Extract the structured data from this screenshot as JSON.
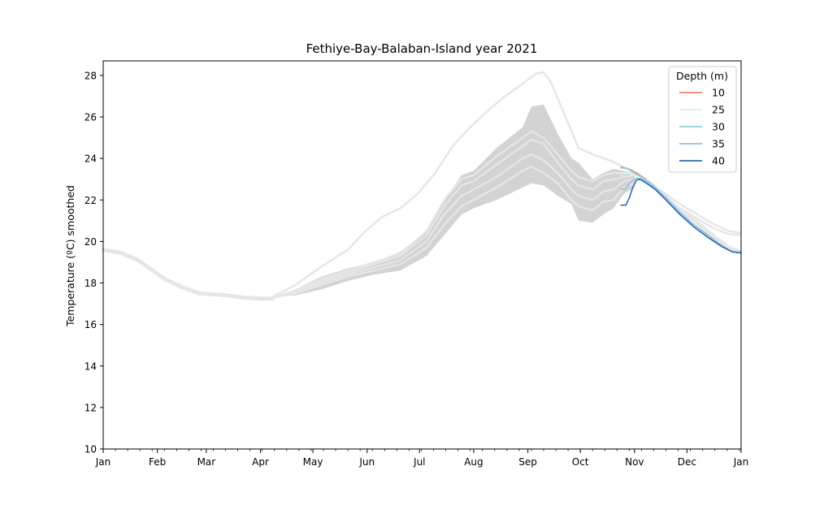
{
  "chart_data": {
    "type": "line",
    "title": "Fethiye-Bay-Balaban-Island year 2021",
    "xlabel": "",
    "ylabel": "Temperature (ºC) smoothed",
    "x_range_days": [
      0,
      365
    ],
    "ylim": [
      10,
      28.7
    ],
    "x_ticks": [
      {
        "label": "Jan",
        "day": 0
      },
      {
        "label": "Feb",
        "day": 31
      },
      {
        "label": "Mar",
        "day": 59
      },
      {
        "label": "Apr",
        "day": 90
      },
      {
        "label": "May",
        "day": 120
      },
      {
        "label": "Jun",
        "day": 151
      },
      {
        "label": "Jul",
        "day": 181
      },
      {
        "label": "Aug",
        "day": 212
      },
      {
        "label": "Sep",
        "day": 243
      },
      {
        "label": "Oct",
        "day": 273
      },
      {
        "label": "Nov",
        "day": 304
      },
      {
        "label": "Dec",
        "day": 334
      },
      {
        "label": "Jan",
        "day": 365
      }
    ],
    "y_ticks": [
      10,
      12,
      14,
      16,
      18,
      20,
      22,
      24,
      26,
      28
    ],
    "grid": false,
    "legend": {
      "title": "Depth (m)",
      "placement": "top-right"
    },
    "climatology": {
      "color": "#d3d3d3",
      "line_color": "#e6e6e6",
      "band_upper": [
        [
          0,
          19.6
        ],
        [
          10,
          19.4
        ],
        [
          25,
          18.8
        ],
        [
          40,
          17.9
        ],
        [
          55,
          17.5
        ],
        [
          70,
          17.4
        ],
        [
          85,
          17.25
        ],
        [
          97,
          17.3
        ],
        [
          110,
          17.7
        ],
        [
          125,
          18.3
        ],
        [
          140,
          18.7
        ],
        [
          155,
          19.0
        ],
        [
          170,
          19.5
        ],
        [
          185,
          20.5
        ],
        [
          195,
          21.9
        ],
        [
          205,
          23.2
        ],
        [
          212,
          23.4
        ],
        [
          225,
          24.5
        ],
        [
          240,
          25.5
        ],
        [
          245,
          26.5
        ],
        [
          252,
          26.6
        ],
        [
          260,
          25.2
        ],
        [
          268,
          24.0
        ],
        [
          272,
          23.8
        ],
        [
          280,
          23.0
        ],
        [
          286,
          23.3
        ],
        [
          292,
          23.5
        ],
        [
          298,
          23.4
        ],
        [
          304,
          23.3
        ]
      ],
      "band_lower": [
        [
          0,
          19.6
        ],
        [
          10,
          19.4
        ],
        [
          25,
          18.8
        ],
        [
          40,
          17.9
        ],
        [
          55,
          17.5
        ],
        [
          70,
          17.4
        ],
        [
          85,
          17.25
        ],
        [
          97,
          17.3
        ],
        [
          110,
          17.4
        ],
        [
          125,
          17.7
        ],
        [
          140,
          18.1
        ],
        [
          155,
          18.4
        ],
        [
          170,
          18.6
        ],
        [
          185,
          19.3
        ],
        [
          195,
          20.3
        ],
        [
          205,
          21.3
        ],
        [
          212,
          21.6
        ],
        [
          225,
          22.0
        ],
        [
          240,
          22.6
        ],
        [
          245,
          22.8
        ],
        [
          252,
          22.7
        ],
        [
          260,
          22.2
        ],
        [
          268,
          21.8
        ],
        [
          272,
          21.0
        ],
        [
          280,
          20.9
        ],
        [
          286,
          21.3
        ],
        [
          292,
          21.6
        ],
        [
          298,
          22.3
        ],
        [
          304,
          22.6
        ]
      ],
      "inner_lines": [
        [
          [
            95,
            17.25
          ],
          [
            110,
            17.5
          ],
          [
            125,
            17.9
          ],
          [
            140,
            18.3
          ],
          [
            155,
            18.6
          ],
          [
            170,
            18.9
          ],
          [
            185,
            19.7
          ],
          [
            195,
            20.8
          ],
          [
            205,
            21.7
          ],
          [
            212,
            22.0
          ],
          [
            225,
            22.6
          ],
          [
            240,
            23.4
          ],
          [
            245,
            23.6
          ],
          [
            252,
            23.3
          ],
          [
            260,
            22.8
          ],
          [
            268,
            22.0
          ],
          [
            272,
            21.7
          ],
          [
            280,
            21.5
          ],
          [
            286,
            21.9
          ],
          [
            292,
            22.0
          ],
          [
            298,
            22.6
          ],
          [
            304,
            22.8
          ]
        ],
        [
          [
            95,
            17.25
          ],
          [
            110,
            17.55
          ],
          [
            125,
            18.0
          ],
          [
            140,
            18.4
          ],
          [
            155,
            18.75
          ],
          [
            170,
            19.1
          ],
          [
            185,
            20.0
          ],
          [
            195,
            21.3
          ],
          [
            205,
            22.2
          ],
          [
            212,
            22.5
          ],
          [
            225,
            23.1
          ],
          [
            240,
            24.0
          ],
          [
            245,
            24.2
          ],
          [
            252,
            23.9
          ],
          [
            260,
            23.3
          ],
          [
            268,
            22.5
          ],
          [
            272,
            22.2
          ],
          [
            280,
            22.0
          ],
          [
            286,
            22.4
          ],
          [
            292,
            22.5
          ],
          [
            298,
            22.9
          ],
          [
            304,
            23.0
          ]
        ],
        [
          [
            95,
            17.25
          ],
          [
            110,
            17.6
          ],
          [
            125,
            18.1
          ],
          [
            140,
            18.5
          ],
          [
            155,
            18.9
          ],
          [
            170,
            19.3
          ],
          [
            185,
            20.3
          ],
          [
            195,
            21.7
          ],
          [
            205,
            22.7
          ],
          [
            212,
            22.9
          ],
          [
            225,
            23.7
          ],
          [
            240,
            24.6
          ],
          [
            245,
            24.9
          ],
          [
            252,
            24.7
          ],
          [
            260,
            23.8
          ],
          [
            268,
            23.0
          ],
          [
            272,
            22.7
          ],
          [
            280,
            22.5
          ],
          [
            286,
            22.9
          ],
          [
            292,
            23.0
          ],
          [
            298,
            23.1
          ],
          [
            304,
            23.2
          ]
        ],
        [
          [
            95,
            17.25
          ],
          [
            110,
            17.65
          ],
          [
            125,
            18.2
          ],
          [
            140,
            18.6
          ],
          [
            155,
            19.0
          ],
          [
            170,
            19.4
          ],
          [
            185,
            20.5
          ],
          [
            195,
            22.0
          ],
          [
            205,
            23.0
          ],
          [
            212,
            23.2
          ],
          [
            225,
            24.1
          ],
          [
            240,
            25.0
          ],
          [
            245,
            25.3
          ],
          [
            252,
            25.0
          ],
          [
            260,
            24.2
          ],
          [
            268,
            23.4
          ],
          [
            272,
            23.1
          ],
          [
            280,
            22.9
          ],
          [
            286,
            23.2
          ],
          [
            292,
            23.3
          ],
          [
            298,
            23.3
          ],
          [
            304,
            23.3
          ]
        ]
      ],
      "max_line": [
        [
          95,
          17.25
        ],
        [
          110,
          17.9
        ],
        [
          125,
          18.8
        ],
        [
          140,
          19.6
        ],
        [
          150,
          20.5
        ],
        [
          160,
          21.2
        ],
        [
          170,
          21.6
        ],
        [
          180,
          22.3
        ],
        [
          190,
          23.3
        ],
        [
          200,
          24.6
        ],
        [
          210,
          25.5
        ],
        [
          220,
          26.3
        ],
        [
          230,
          27.0
        ],
        [
          240,
          27.6
        ],
        [
          248,
          28.1
        ],
        [
          252,
          28.15
        ],
        [
          256,
          27.7
        ],
        [
          262,
          26.5
        ],
        [
          268,
          25.3
        ],
        [
          272,
          24.5
        ],
        [
          280,
          24.2
        ],
        [
          290,
          23.9
        ],
        [
          300,
          23.5
        ],
        [
          310,
          23.0
        ],
        [
          320,
          22.4
        ],
        [
          330,
          21.8
        ],
        [
          340,
          21.3
        ],
        [
          350,
          20.8
        ],
        [
          358,
          20.5
        ],
        [
          365,
          20.4
        ]
      ],
      "max_line_lower": [
        [
          320,
          22.2
        ],
        [
          330,
          21.6
        ],
        [
          340,
          21.1
        ],
        [
          350,
          20.6
        ],
        [
          358,
          20.35
        ],
        [
          365,
          20.3
        ]
      ],
      "early_band": [
        [
          0,
          19.6
        ],
        [
          10,
          19.45
        ],
        [
          20,
          19.1
        ],
        [
          25,
          18.8
        ],
        [
          35,
          18.2
        ],
        [
          45,
          17.8
        ],
        [
          55,
          17.5
        ],
        [
          70,
          17.4
        ],
        [
          80,
          17.3
        ],
        [
          90,
          17.25
        ],
        [
          97,
          17.25
        ]
      ],
      "late_band": [
        [
          304,
          23.3
        ],
        [
          310,
          23.0
        ],
        [
          320,
          22.3
        ],
        [
          330,
          21.5
        ],
        [
          340,
          20.9
        ],
        [
          350,
          20.2
        ],
        [
          358,
          19.7
        ],
        [
          365,
          19.5
        ]
      ]
    },
    "series": [
      {
        "name": "10",
        "color": "#f4825f",
        "points": [
          [
            296,
            23.6
          ],
          [
            302,
            23.45
          ],
          [
            306,
            23.25
          ],
          [
            310,
            23.0
          ],
          [
            316,
            22.6
          ],
          [
            322,
            22.1
          ],
          [
            330,
            21.4
          ],
          [
            338,
            20.8
          ],
          [
            346,
            20.3
          ],
          [
            354,
            19.8
          ],
          [
            360,
            19.5
          ],
          [
            365,
            19.45
          ]
        ]
      },
      {
        "name": "25",
        "color": "#d6eef5",
        "points": [
          [
            296,
            23.2
          ],
          [
            300,
            23.3
          ],
          [
            304,
            23.2
          ],
          [
            308,
            23.05
          ],
          [
            314,
            22.75
          ],
          [
            322,
            22.1
          ],
          [
            330,
            21.4
          ],
          [
            338,
            20.8
          ],
          [
            346,
            20.3
          ],
          [
            354,
            19.8
          ],
          [
            360,
            19.5
          ],
          [
            365,
            19.45
          ]
        ]
      },
      {
        "name": "30",
        "color": "#8fcfd9",
        "points": [
          [
            296,
            23.55
          ],
          [
            300,
            23.5
          ],
          [
            304,
            23.3
          ],
          [
            308,
            23.1
          ],
          [
            314,
            22.75
          ],
          [
            322,
            22.1
          ],
          [
            330,
            21.4
          ],
          [
            338,
            20.8
          ],
          [
            346,
            20.3
          ],
          [
            354,
            19.8
          ],
          [
            360,
            19.5
          ],
          [
            365,
            19.45
          ]
        ]
      },
      {
        "name": "35",
        "color": "#8fbfe0",
        "points": [
          [
            296,
            22.5
          ],
          [
            299,
            22.55
          ],
          [
            302,
            22.9
          ],
          [
            305,
            23.05
          ],
          [
            308,
            23.0
          ],
          [
            314,
            22.7
          ],
          [
            322,
            22.1
          ],
          [
            330,
            21.4
          ],
          [
            338,
            20.8
          ],
          [
            346,
            20.3
          ],
          [
            354,
            19.8
          ],
          [
            360,
            19.5
          ],
          [
            365,
            19.45
          ]
        ]
      },
      {
        "name": "40",
        "color": "#2f68b0",
        "points": [
          [
            296,
            21.75
          ],
          [
            299,
            21.75
          ],
          [
            301,
            22.1
          ],
          [
            303,
            22.6
          ],
          [
            305,
            22.95
          ],
          [
            307,
            23.0
          ],
          [
            310,
            22.85
          ],
          [
            316,
            22.5
          ],
          [
            322,
            22.0
          ],
          [
            330,
            21.3
          ],
          [
            338,
            20.7
          ],
          [
            346,
            20.2
          ],
          [
            354,
            19.75
          ],
          [
            360,
            19.5
          ],
          [
            365,
            19.45
          ]
        ]
      }
    ]
  }
}
